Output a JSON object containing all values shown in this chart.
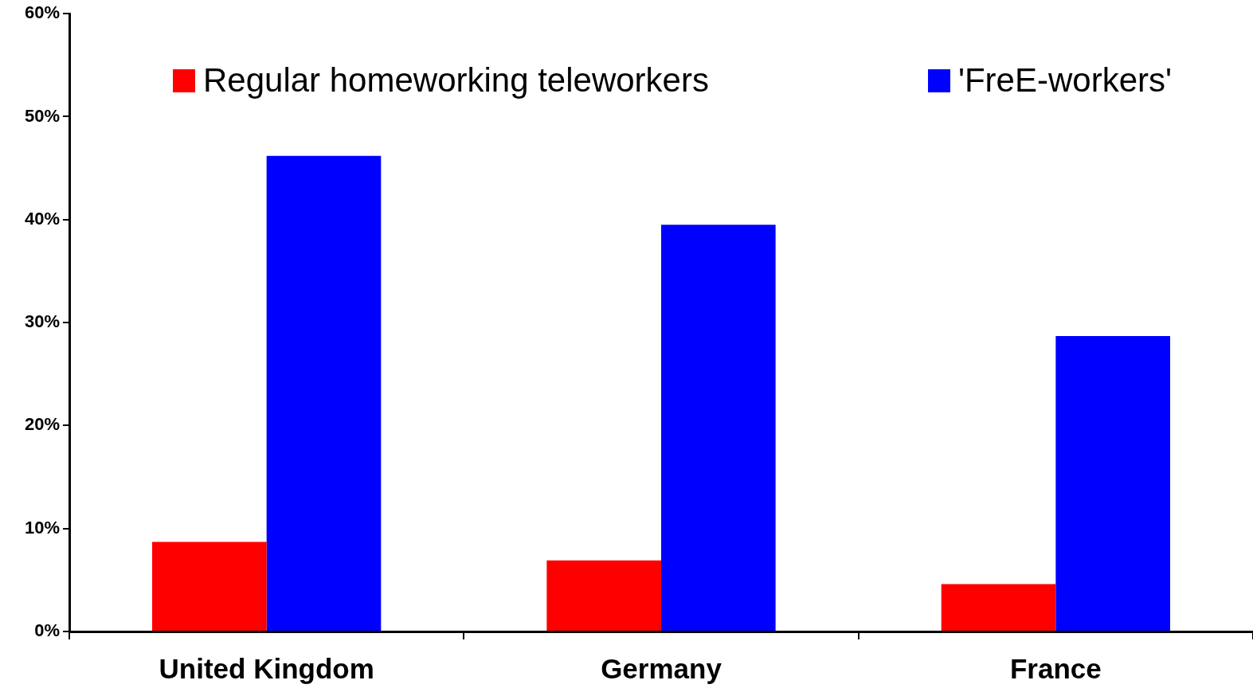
{
  "chart_data": {
    "type": "bar",
    "categories": [
      "United Kingdom",
      "Germany",
      "France"
    ],
    "series": [
      {
        "name": "Regular homeworking teleworkers",
        "color": "#ff0000",
        "values": [
          8.7,
          6.9,
          4.6
        ]
      },
      {
        "name": "'FreE-workers'",
        "color": "#0000ff",
        "values": [
          46.2,
          39.5,
          28.7
        ]
      }
    ],
    "ylim": [
      0,
      60
    ],
    "yticks": [
      {
        "value": 0,
        "label": "0%"
      },
      {
        "value": 10,
        "label": "10%"
      },
      {
        "value": 20,
        "label": "20%"
      },
      {
        "value": 30,
        "label": "30%"
      },
      {
        "value": 40,
        "label": "40%"
      },
      {
        "value": 50,
        "label": "50%"
      },
      {
        "value": 60,
        "label": "60%"
      }
    ],
    "grid": false,
    "legend": "top"
  }
}
